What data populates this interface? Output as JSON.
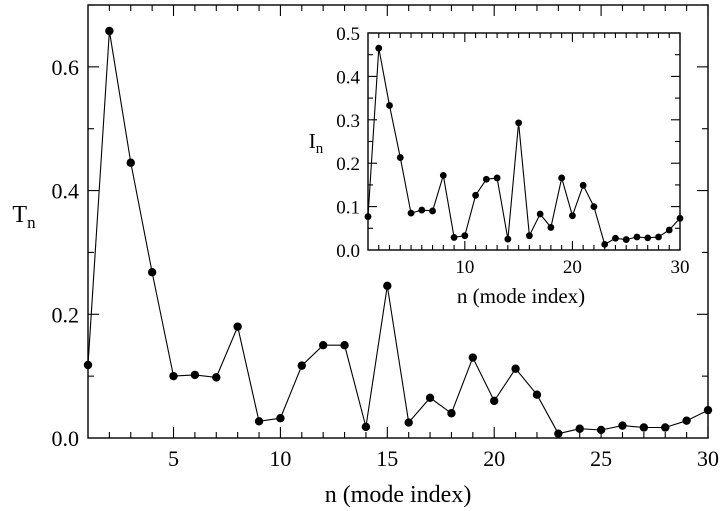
{
  "chart_data": [
    {
      "type": "line",
      "x": [
        1,
        2,
        3,
        4,
        5,
        6,
        7,
        8,
        9,
        10,
        11,
        12,
        13,
        14,
        15,
        16,
        17,
        18,
        19,
        20,
        21,
        22,
        23,
        24,
        25,
        26,
        27,
        28,
        29,
        30
      ],
      "series": [
        {
          "values": [
            0.118,
            0.658,
            0.445,
            0.268,
            0.1,
            0.102,
            0.098,
            0.18,
            0.027,
            0.032,
            0.117,
            0.15,
            0.15,
            0.018,
            0.246,
            0.025,
            0.065,
            0.04,
            0.13,
            0.06,
            0.112,
            0.07,
            0.007,
            0.015,
            0.013,
            0.02,
            0.017,
            0.017,
            0.028,
            0.045
          ]
        }
      ],
      "xlabel": "n (mode index)",
      "ylabel": "T",
      "ylabel_sub": "n",
      "xlim": [
        1,
        30
      ],
      "ylim": [
        0,
        0.7
      ],
      "xticks": [
        5,
        10,
        15,
        20,
        25,
        30
      ],
      "xtick_labels": [
        "5",
        "10",
        "15",
        "20",
        "25",
        "30"
      ],
      "yticks": [
        0,
        0.2,
        0.4,
        0.6
      ],
      "ytick_labels": [
        "0.0",
        "0.2",
        "0.4",
        "0.6"
      ],
      "grid": false,
      "marker": "filled-circle",
      "color": "#000000"
    },
    {
      "type": "line",
      "x": [
        1,
        2,
        3,
        4,
        5,
        6,
        7,
        8,
        9,
        10,
        11,
        12,
        13,
        14,
        15,
        16,
        17,
        18,
        19,
        20,
        21,
        22,
        23,
        24,
        25,
        26,
        27,
        28,
        29,
        30
      ],
      "series": [
        {
          "values": [
            0.077,
            0.465,
            0.333,
            0.213,
            0.085,
            0.092,
            0.09,
            0.172,
            0.029,
            0.033,
            0.126,
            0.163,
            0.166,
            0.025,
            0.293,
            0.033,
            0.083,
            0.052,
            0.166,
            0.079,
            0.149,
            0.1,
            0.013,
            0.027,
            0.024,
            0.03,
            0.028,
            0.03,
            0.046,
            0.073
          ]
        }
      ],
      "xlabel": "n (mode index)",
      "ylabel": "I",
      "ylabel_sub": "n",
      "xlim": [
        1,
        30
      ],
      "ylim": [
        0,
        0.5
      ],
      "xticks": [
        10,
        20,
        30
      ],
      "xtick_labels": [
        "10",
        "20",
        "30"
      ],
      "yticks": [
        0,
        0.1,
        0.2,
        0.3,
        0.4,
        0.5
      ],
      "ytick_labels": [
        "0.0",
        "0.1",
        "0.2",
        "0.3",
        "0.4",
        "0.5"
      ],
      "grid": false,
      "legend": "none",
      "marker": "filled-circle",
      "color": "#000000"
    }
  ]
}
